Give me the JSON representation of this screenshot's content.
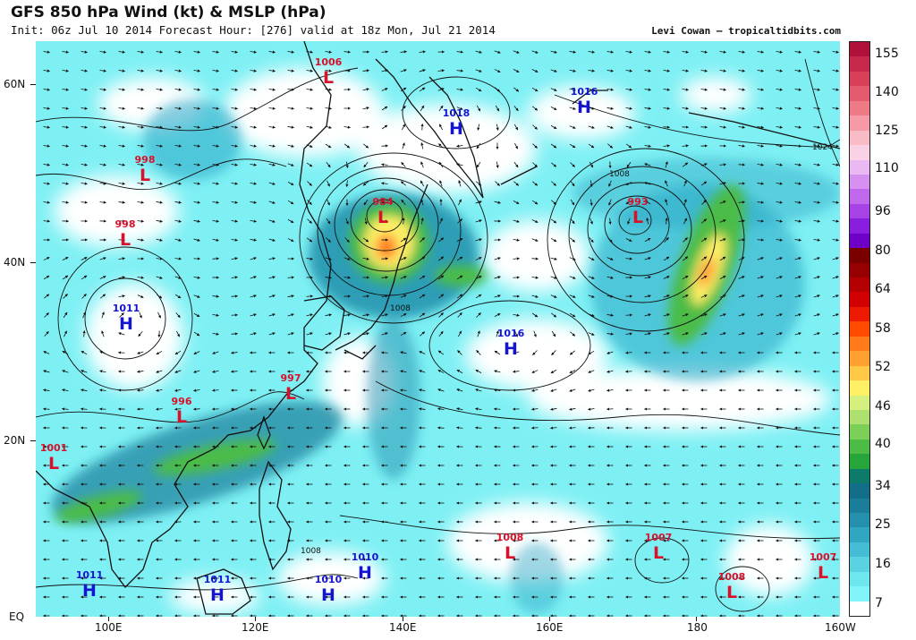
{
  "header": {
    "title": "GFS 850 hPa Wind (kt) & MSLP (hPa)",
    "subtitle": "Init: 06z Jul 10 2014 Forecast Hour: [276] valid at 18z Mon, Jul 21 2014",
    "credit": "Levi Cowan – tropicaltidbits.com"
  },
  "axes": {
    "lat_labels": [
      "60N",
      "40N",
      "20N",
      "EQ"
    ],
    "lon_labels": [
      "100E",
      "120E",
      "140E",
      "160E",
      "180",
      "160W"
    ]
  },
  "colorbar": {
    "labels": [
      "155",
      "140",
      "125",
      "110",
      "96",
      "80",
      "64",
      "58",
      "52",
      "46",
      "40",
      "34",
      "25",
      "16",
      "7"
    ],
    "colors": [
      "#b0103a",
      "#c8284c",
      "#d8405a",
      "#e45a6e",
      "#ee7a86",
      "#f59aa6",
      "#f9bcc6",
      "#f9d2e6",
      "#eab8f2",
      "#d690f0",
      "#bf68ec",
      "#a642e6",
      "#8a1ede",
      "#6e00c8",
      "#7a0000",
      "#960000",
      "#b40000",
      "#d20000",
      "#ee1a00",
      "#ff4a00",
      "#ff7a1a",
      "#ffa030",
      "#ffc846",
      "#fff066",
      "#d6f080",
      "#aee070",
      "#7cd05a",
      "#4cbc46",
      "#26a63a",
      "#0e7a6a",
      "#126e88",
      "#1a7e9a",
      "#2490ae",
      "#30a6c2",
      "#44bcd4",
      "#5ad2e2",
      "#6ee6ee",
      "#80f4f8",
      "#ffffff"
    ]
  },
  "pressure_centers": [
    {
      "type": "L",
      "value": "1006"
    },
    {
      "type": "L",
      "value": "998"
    },
    {
      "type": "L",
      "value": "998"
    },
    {
      "type": "H",
      "value": "1011"
    },
    {
      "type": "L",
      "value": "996"
    },
    {
      "type": "L",
      "value": "1001"
    },
    {
      "type": "L",
      "value": "997"
    },
    {
      "type": "L",
      "value": "984"
    },
    {
      "type": "H",
      "value": "1018"
    },
    {
      "type": "H",
      "value": "1016"
    },
    {
      "type": "H",
      "value": "1016"
    },
    {
      "type": "L",
      "value": "993"
    },
    {
      "type": "L",
      "value": "1008"
    },
    {
      "type": "L",
      "value": "1007"
    },
    {
      "type": "L",
      "value": "1008"
    },
    {
      "type": "L",
      "value": "1007"
    },
    {
      "type": "H",
      "value": "1011"
    },
    {
      "type": "H",
      "value": "1011"
    },
    {
      "type": "H",
      "value": "1010"
    },
    {
      "type": "H",
      "value": "1010"
    }
  ],
  "isobar_labels": [
    "1008",
    "1008",
    "1024",
    "1008"
  ],
  "colors": {
    "low": "#d8102a",
    "high": "#1414d0",
    "land": "#111111"
  }
}
